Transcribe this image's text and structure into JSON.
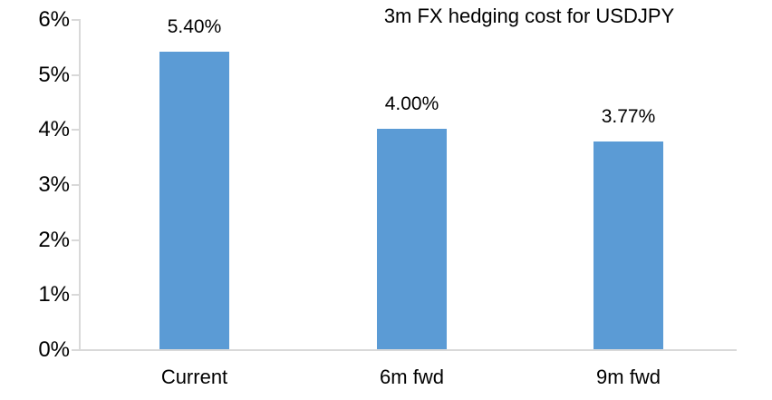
{
  "chart_data": {
    "type": "bar",
    "title": "3m FX hedging cost for USDJPY",
    "categories": [
      "Current",
      "6m fwd",
      "9m fwd"
    ],
    "values": [
      5.4,
      4.0,
      3.77
    ],
    "data_labels": [
      "5.40%",
      "4.00%",
      "3.77%"
    ],
    "xlabel": "",
    "ylabel": "",
    "y_axis": {
      "min": 0,
      "max": 6,
      "tick_step": 1,
      "tick_labels": [
        "0%",
        "1%",
        "2%",
        "3%",
        "4%",
        "5%",
        "6%"
      ]
    },
    "grid": false,
    "legend": "none",
    "colors": {
      "bar": "#5B9BD5",
      "axis": "#D9D9D9",
      "text": "#000000",
      "background": "#FFFFFF"
    }
  }
}
